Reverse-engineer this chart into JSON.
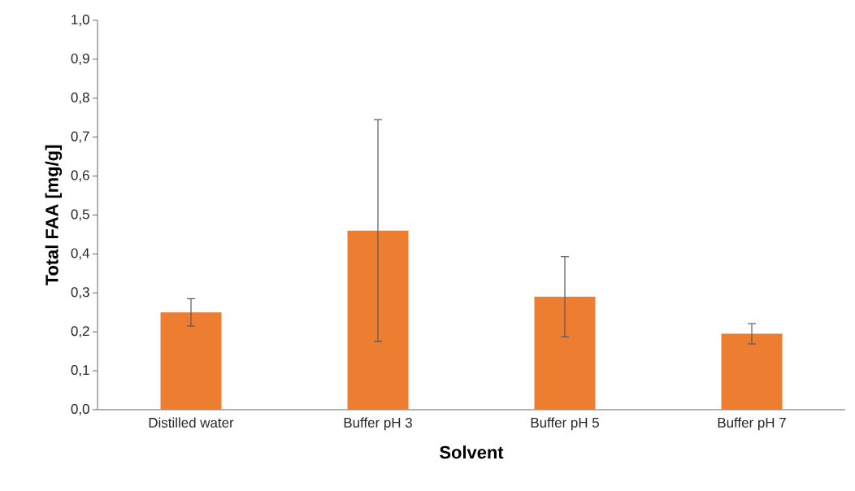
{
  "chart_data": {
    "type": "bar",
    "xlabel": "Solvent",
    "ylabel": "Total FAA  [mg/g]",
    "categories": [
      "Distilled water",
      "Buffer pH 3",
      "Buffer pH 5",
      "Buffer pH 7"
    ],
    "values": [
      0.25,
      0.46,
      0.29,
      0.195
    ],
    "errors": [
      0.035,
      0.285,
      0.103,
      0.026
    ],
    "color": "#ed7d31",
    "ylim": [
      0,
      1.0
    ],
    "yticks": [
      {
        "value": 0,
        "label": "0,0"
      },
      {
        "value": 0.1,
        "label": "0,1"
      },
      {
        "value": 0.2,
        "label": "0,2"
      },
      {
        "value": 0.3,
        "label": "0,3"
      },
      {
        "value": 0.4,
        "label": "0,4"
      },
      {
        "value": 0.5,
        "label": "0,5"
      },
      {
        "value": 0.6,
        "label": "0,6"
      },
      {
        "value": 0.7,
        "label": "0,7"
      },
      {
        "value": 0.8,
        "label": "0,8"
      },
      {
        "value": 0.9,
        "label": "0,9"
      },
      {
        "value": 1.0,
        "label": "1,0"
      }
    ],
    "grid": false
  }
}
